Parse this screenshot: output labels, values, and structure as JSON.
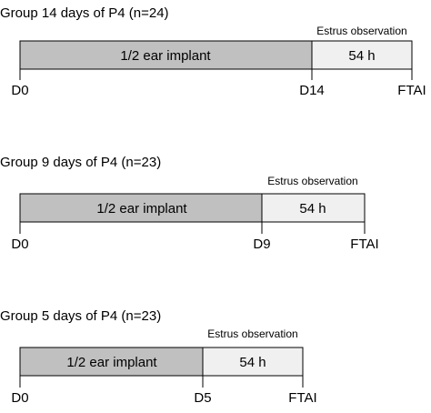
{
  "groups": [
    {
      "title": "Group 14 days of P4 (n=24)",
      "implant_label": "1/2 ear implant",
      "observation_label": "Estrus observation",
      "observation_duration": "54 h",
      "start_label": "D0",
      "removal_label": "D14",
      "end_label": "FTAI",
      "implant_days": 14
    },
    {
      "title": "Group 9 days of P4 (n=23)",
      "implant_label": "1/2 ear implant",
      "observation_label": "Estrus observation",
      "observation_duration": "54 h",
      "start_label": "D0",
      "removal_label": "D9",
      "end_label": "FTAI",
      "implant_days": 9
    },
    {
      "title": "Group 5 days of P4 (n=23)",
      "implant_label": "1/2 ear implant",
      "observation_label": "Estrus observation",
      "observation_duration": "54 h",
      "start_label": "D0",
      "removal_label": "D5",
      "end_label": "FTAI",
      "implant_days": 5
    }
  ],
  "colors": {
    "implant_fill": "#c0c0c0",
    "observation_fill": "#f0f0f0",
    "stroke": "#000000"
  }
}
